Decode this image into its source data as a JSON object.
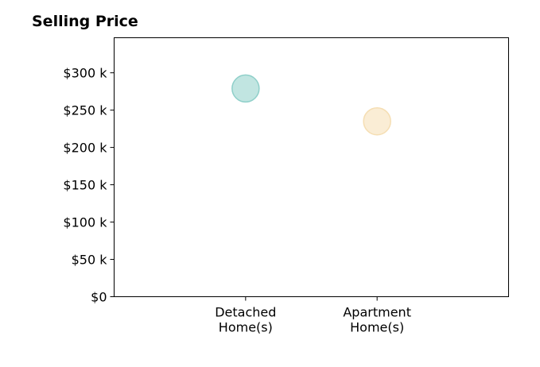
{
  "chart_data": {
    "type": "scatter",
    "title": "Selling Price",
    "xlabel": "",
    "ylabel": "",
    "categories": [
      [
        "Detached",
        "Home(s)"
      ],
      [
        "Apartment",
        "Home(s)"
      ]
    ],
    "x_range": [
      0,
      3
    ],
    "ylim": [
      0,
      347000
    ],
    "y_ticks": [
      0,
      50000,
      100000,
      150000,
      200000,
      250000,
      300000
    ],
    "y_tick_labels": [
      "$0",
      "$50 k",
      "$100 k",
      "$150 k",
      "$200 k",
      "$250 k",
      "$300 k"
    ],
    "series": [
      {
        "values": [
          279000
        ],
        "category_index": 0,
        "color": "#8ecfc9"
      },
      {
        "values": [
          235000
        ],
        "category_index": 1,
        "color": "#f5deb3"
      }
    ],
    "grid": false,
    "legend": "none"
  }
}
